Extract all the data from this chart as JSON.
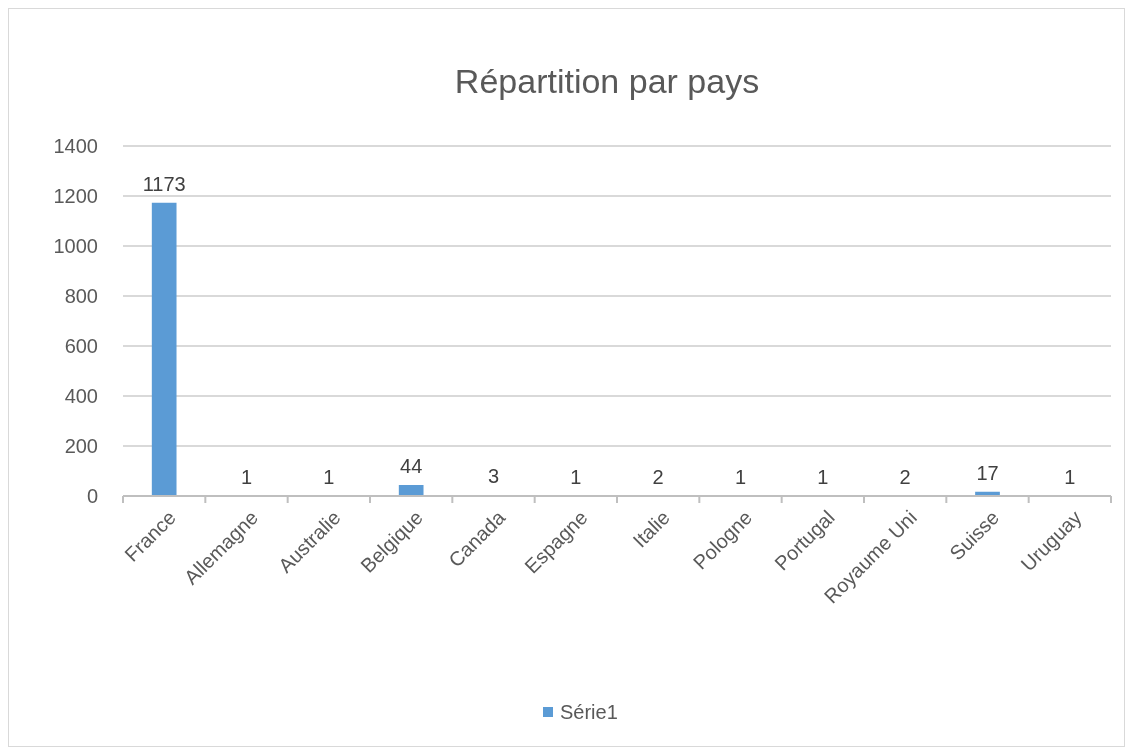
{
  "chart_data": {
    "type": "bar",
    "title": "Répartition par pays",
    "categories": [
      "France",
      "Allemagne",
      "Australie",
      "Belgique",
      "Canada",
      "Espagne",
      "Italie",
      "Pologne",
      "Portugal",
      "Royaume Uni",
      "Suisse",
      "Uruguay"
    ],
    "series": [
      {
        "name": "Série1",
        "color": "#5b9bd5",
        "values": [
          1173,
          1,
          1,
          44,
          3,
          1,
          2,
          1,
          1,
          2,
          17,
          1
        ]
      }
    ],
    "ylim": [
      0,
      1400
    ],
    "yticks": [
      0,
      200,
      400,
      600,
      800,
      1000,
      1200,
      1400
    ],
    "grid": "y",
    "legend": "bottom",
    "data_labels": true
  }
}
